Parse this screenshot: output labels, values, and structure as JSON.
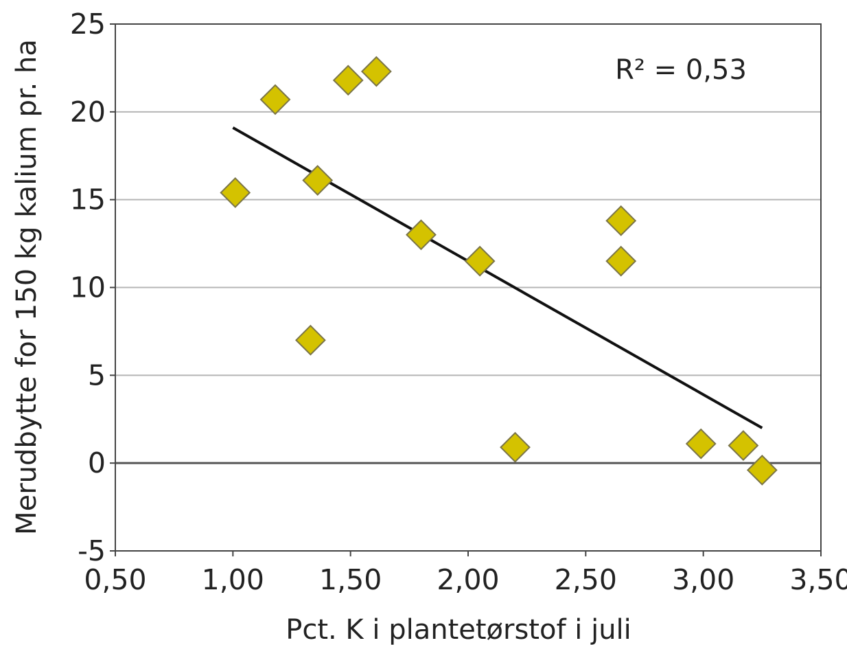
{
  "chart_data": {
    "type": "scatter",
    "title": "",
    "xlabel": "Pct. K i plantetørstof i juli",
    "ylabel": "Merudbytte for 150 kg kalium pr. ha",
    "xlim": [
      0.5,
      3.5
    ],
    "ylim": [
      -5,
      25
    ],
    "x_ticks": [
      "0,50",
      "1,00",
      "1,50",
      "2,00",
      "2,50",
      "3,00",
      "3,50"
    ],
    "x_tick_values": [
      0.5,
      1.0,
      1.5,
      2.0,
      2.5,
      3.0,
      3.5
    ],
    "y_ticks": [
      "25",
      "20",
      "15",
      "10",
      "5",
      "0",
      "-5"
    ],
    "y_tick_values": [
      25,
      20,
      15,
      10,
      5,
      0,
      -5
    ],
    "grid": "horizontal",
    "marker": "diamond",
    "marker_color": "#d4c200",
    "trendline_color": "#111111",
    "points": [
      {
        "x": 1.01,
        "y": 15.4
      },
      {
        "x": 1.18,
        "y": 20.7
      },
      {
        "x": 1.33,
        "y": 7.0
      },
      {
        "x": 1.36,
        "y": 16.1
      },
      {
        "x": 1.49,
        "y": 21.8
      },
      {
        "x": 1.61,
        "y": 22.3
      },
      {
        "x": 1.8,
        "y": 13.0
      },
      {
        "x": 2.05,
        "y": 11.5
      },
      {
        "x": 2.2,
        "y": 0.9
      },
      {
        "x": 2.65,
        "y": 13.8
      },
      {
        "x": 2.65,
        "y": 11.5
      },
      {
        "x": 2.99,
        "y": 1.1
      },
      {
        "x": 3.17,
        "y": 1.0
      },
      {
        "x": 3.25,
        "y": -0.4
      }
    ],
    "trendline": {
      "x_start": 1.0,
      "y_start": 19.1,
      "x_end": 3.25,
      "y_end": 2.0
    },
    "annotation": "R² = 0,53"
  }
}
